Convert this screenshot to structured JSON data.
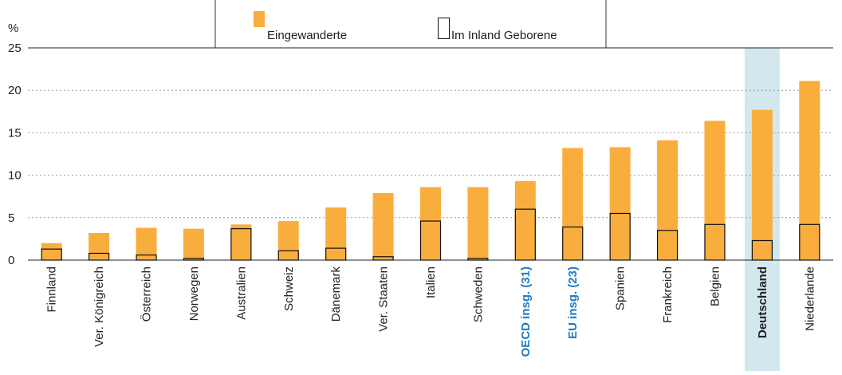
{
  "chart_data": {
    "type": "bar",
    "y_label": "%",
    "categories": [
      "Finnland",
      "Ver. Königreich",
      "Österreich",
      "Norwegen",
      "Australien",
      "Schweiz",
      "Dänemark",
      "Ver. Staaten",
      "Italien",
      "Schweden",
      "OECD insg. (31)",
      "EU insg. (23)",
      "Spanien",
      "Frankreich",
      "Belgien",
      "Deutschland",
      "Niederlande"
    ],
    "series": [
      {
        "name": "Eingewanderte",
        "color": "#f9ad3c",
        "values": [
          2.0,
          3.2,
          3.8,
          3.7,
          4.2,
          4.6,
          6.2,
          7.9,
          8.6,
          8.6,
          9.3,
          13.2,
          13.3,
          14.1,
          16.4,
          17.7,
          21.1
        ]
      },
      {
        "name": "Im Inland Geborene",
        "color": "none",
        "values": [
          1.3,
          0.8,
          0.6,
          0.2,
          3.7,
          1.1,
          1.4,
          0.4,
          4.6,
          0.2,
          6.0,
          3.9,
          5.5,
          3.5,
          4.2,
          2.3,
          4.2
        ]
      }
    ],
    "ylim": [
      0,
      25
    ],
    "yticks": [
      0,
      5,
      10,
      15,
      20,
      25
    ],
    "grid": true,
    "highlight": 15,
    "highlight_color": "#d3e7ee",
    "emphasis": [
      10,
      11
    ],
    "emphasis_color": "#1f7bbd"
  }
}
